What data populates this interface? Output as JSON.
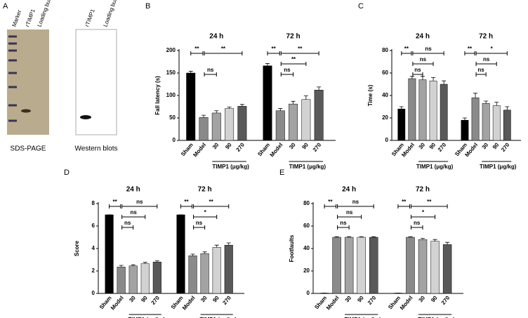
{
  "panel_a": {
    "panel": "A",
    "lanes_left": [
      "Marker",
      "rTIMP1",
      "Loading buffer"
    ],
    "lanes_right": [
      "rTIMP1",
      "Loading buffer"
    ],
    "caption_left": "SDS-PAGE",
    "caption_right": "Western blots"
  },
  "chart_data": [
    {
      "type": "bar",
      "panel": "B",
      "ylabel": "Fall latency (s)",
      "xlabel": "TIMP1 (μg/kg)",
      "categories": [
        "Sham",
        "Model",
        "30",
        "90",
        "270"
      ],
      "colors": [
        "#000000",
        "#8a8a8a",
        "#a3a3a3",
        "#d2d2d2",
        "#595959"
      ],
      "ylim": [
        0,
        200
      ],
      "yticks": [
        0,
        50,
        100,
        150,
        200
      ],
      "series": [
        {
          "name": "24 h",
          "values": [
            150,
            51,
            61,
            71,
            76
          ],
          "errors": [
            4,
            5,
            5,
            3,
            4
          ],
          "annotations": [
            "**",
            "ns",
            null,
            "**"
          ]
        },
        {
          "name": "72 h",
          "values": [
            166,
            66,
            81,
            91,
            112
          ],
          "errors": [
            5,
            5,
            6,
            8,
            7
          ],
          "annotations": [
            "**",
            "ns",
            "**",
            "**"
          ]
        }
      ]
    },
    {
      "type": "bar",
      "panel": "C",
      "ylabel": "Time (s)",
      "xlabel": "TIMP1 (μg/kg)",
      "categories": [
        "Sham",
        "Model",
        "30",
        "90",
        "270"
      ],
      "colors": [
        "#000000",
        "#8a8a8a",
        "#a3a3a3",
        "#d2d2d2",
        "#595959"
      ],
      "ylim": [
        0,
        80
      ],
      "yticks": [
        0,
        20,
        40,
        60,
        80
      ],
      "series": [
        {
          "name": "24 h",
          "values": [
            28,
            55,
            54,
            53,
            50
          ],
          "errors": [
            2,
            2,
            3,
            3,
            3
          ],
          "annotations": [
            "**",
            "ns",
            "ns",
            "ns"
          ]
        },
        {
          "name": "72 h",
          "values": [
            18,
            38,
            33,
            31,
            27
          ],
          "errors": [
            2,
            4,
            2,
            3,
            3
          ],
          "annotations": [
            "**",
            "ns",
            "ns",
            "*"
          ]
        }
      ]
    },
    {
      "type": "bar",
      "panel": "D",
      "ylabel": "Score",
      "xlabel": "TIMP1 (μg/kg)",
      "categories": [
        "Sham",
        "Model",
        "30",
        "90",
        "270"
      ],
      "colors": [
        "#000000",
        "#8a8a8a",
        "#a3a3a3",
        "#d2d2d2",
        "#595959"
      ],
      "ylim": [
        0,
        8
      ],
      "yticks": [
        0,
        2,
        4,
        6,
        8
      ],
      "series": [
        {
          "name": "24 h",
          "values": [
            7,
            2.35,
            2.45,
            2.65,
            2.8
          ],
          "errors": [
            0,
            0.15,
            0.1,
            0.12,
            0.1
          ],
          "annotations": [
            "**",
            "ns",
            "ns",
            "ns"
          ]
        },
        {
          "name": "72 h",
          "values": [
            7,
            3.35,
            3.55,
            4.1,
            4.3
          ],
          "errors": [
            0,
            0.15,
            0.15,
            0.2,
            0.2
          ],
          "annotations": [
            "**",
            "ns",
            "*",
            "**"
          ]
        }
      ]
    },
    {
      "type": "bar",
      "panel": "E",
      "ylabel": "Footfaults",
      "xlabel": "TIMP1 (μg/kg)",
      "categories": [
        "Sham",
        "Model",
        "30",
        "90",
        "270"
      ],
      "colors": [
        "#000000",
        "#8a8a8a",
        "#a3a3a3",
        "#d2d2d2",
        "#595959"
      ],
      "ylim": [
        0,
        80
      ],
      "yticks": [
        0,
        20,
        40,
        60,
        80
      ],
      "series": [
        {
          "name": "24 h",
          "values": [
            0.3,
            50,
            50,
            50,
            50
          ],
          "errors": [
            0,
            0.5,
            0.5,
            0.5,
            0.5
          ],
          "annotations": [
            "**",
            "ns",
            "ns",
            "ns"
          ]
        },
        {
          "name": "72 h",
          "values": [
            0.3,
            50,
            48,
            46.5,
            43.5
          ],
          "errors": [
            0,
            0.5,
            1,
            1.5,
            2
          ],
          "annotations": [
            "**",
            "ns",
            "*",
            "**"
          ]
        }
      ]
    }
  ]
}
